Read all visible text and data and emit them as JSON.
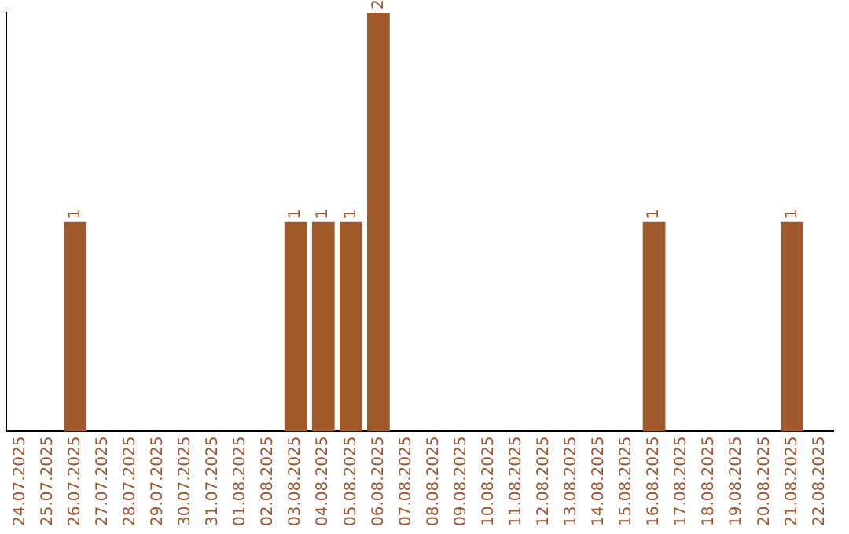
{
  "chart_data": {
    "type": "bar",
    "categories": [
      "24.07.2025",
      "25.07.2025",
      "26.07.2025",
      "27.07.2025",
      "28.07.2025",
      "29.07.2025",
      "30.07.2025",
      "31.07.2025",
      "01.08.2025",
      "02.08.2025",
      "03.08.2025",
      "04.08.2025",
      "05.08.2025",
      "06.08.2025",
      "07.08.2025",
      "08.08.2025",
      "09.08.2025",
      "10.08.2025",
      "11.08.2025",
      "12.08.2025",
      "13.08.2025",
      "14.08.2025",
      "15.08.2025",
      "16.08.2025",
      "17.08.2025",
      "18.08.2025",
      "19.08.2025",
      "20.08.2025",
      "21.08.2025",
      "22.08.2025"
    ],
    "values": [
      0,
      0,
      1,
      0,
      0,
      0,
      0,
      0,
      0,
      0,
      1,
      1,
      1,
      2,
      0,
      0,
      0,
      0,
      0,
      0,
      0,
      0,
      0,
      1,
      0,
      0,
      0,
      0,
      1,
      0
    ],
    "color": "#a0592a",
    "ylim": [
      0,
      2
    ],
    "value_labels": [
      null,
      null,
      "1",
      null,
      null,
      null,
      null,
      null,
      null,
      null,
      "1",
      "1",
      "1",
      "2",
      null,
      null,
      null,
      null,
      null,
      null,
      null,
      null,
      null,
      "1",
      null,
      null,
      null,
      null,
      "1",
      null
    ],
    "grid": false,
    "legend": false,
    "tick_labels": "x"
  }
}
